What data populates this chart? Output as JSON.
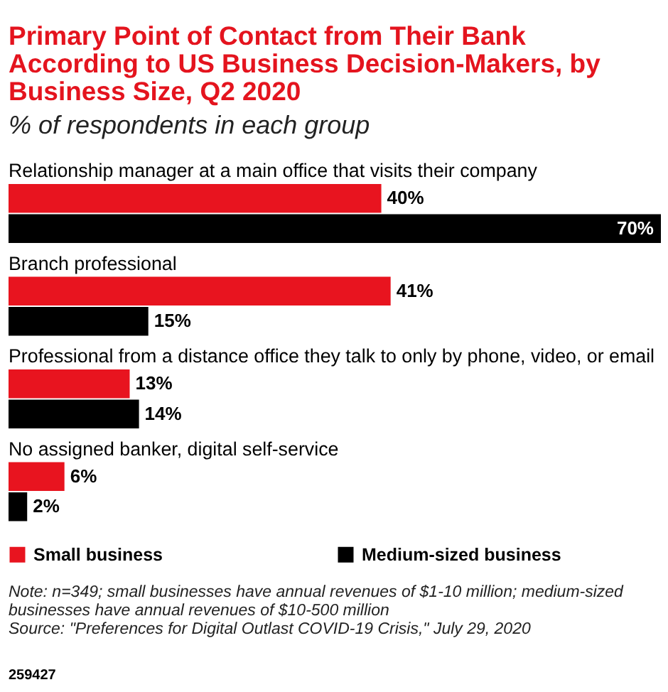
{
  "chart_data": {
    "type": "bar",
    "orientation": "horizontal",
    "title": "Primary Point of Contact from Their Bank According to US Business Decision-Makers, by Business Size, Q2 2020",
    "subtitle": "% of respondents in each group",
    "categories": [
      "Relationship manager at a main office that visits their company",
      "Branch professional",
      "Professional from a distance office they talk to only by phone, video, or email",
      "No assigned banker, digital self-service"
    ],
    "series": [
      {
        "name": "Small business",
        "color": "#e8141f",
        "values": [
          40,
          41,
          13,
          6
        ],
        "value_labels": [
          "40%",
          "41%",
          "13%",
          "6%"
        ]
      },
      {
        "name": "Medium-sized business",
        "color": "#000000",
        "values": [
          70,
          15,
          14,
          2
        ],
        "value_labels": [
          "70%",
          "15%",
          "14%",
          "2%"
        ]
      }
    ],
    "legend": "bottom",
    "tick_labels": "y",
    "annotations": [
      "Note: n=349; small businesses have annual revenues of $1-10 million; medium-sized businesses have annual revenues of $10-500 million",
      "Source: \"Preferences for Digital Outlast COVID-19 Crisis,\" July 29, 2020",
      "259427"
    ]
  }
}
